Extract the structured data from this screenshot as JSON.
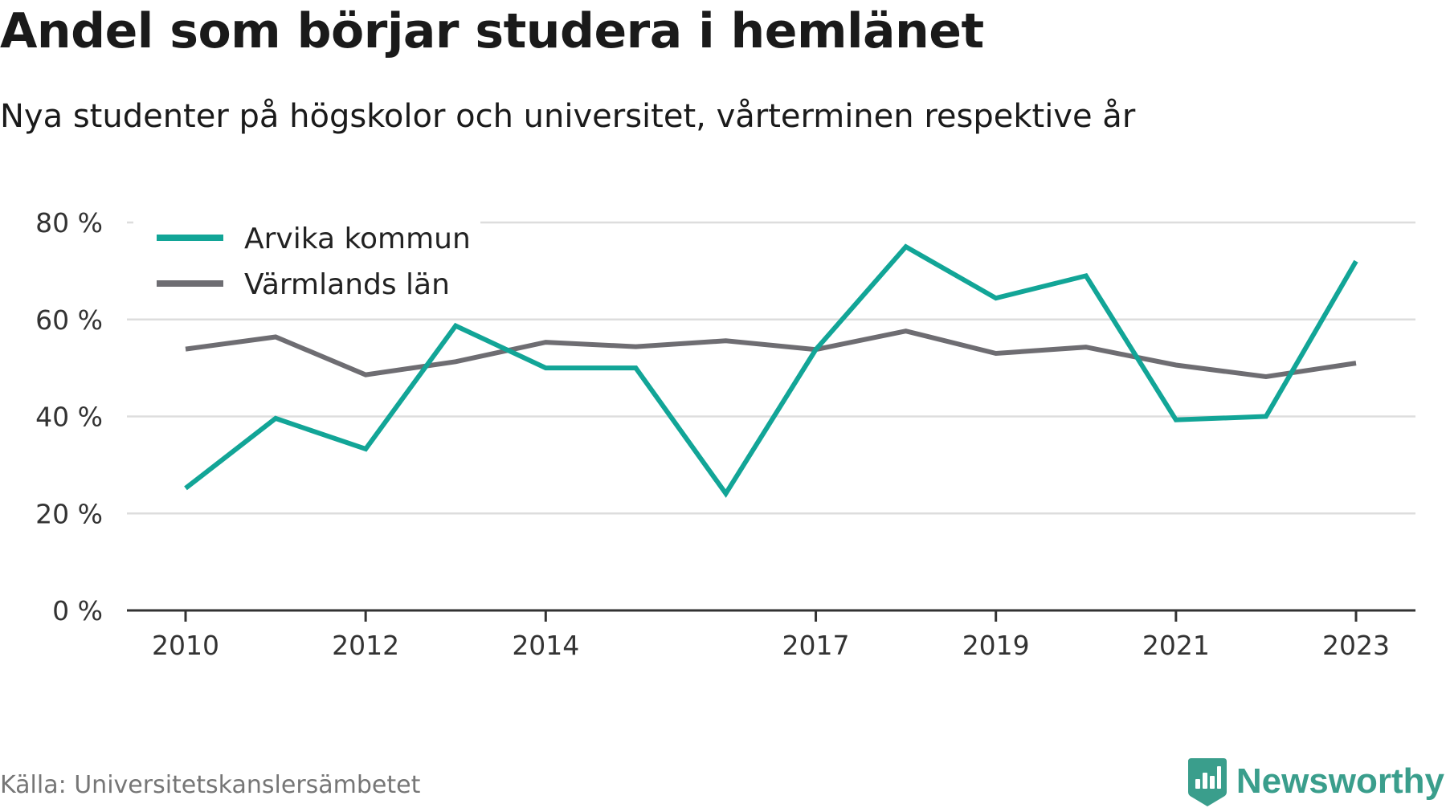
{
  "title": "Andel som börjar studera i hemlänet",
  "subtitle": "Nya studenter på högskolor och universitet, vårterminen respektive år",
  "source": "Källa: Universitetskanslersämbetet",
  "brand": "Newsworthy",
  "colors": {
    "arvika": "#12a597",
    "varmland": "#6e6d72",
    "grid": "#dddddd",
    "axis": "#333333",
    "brand": "#3a9e8c"
  },
  "chart_data": {
    "type": "line",
    "title": "Andel som börjar studera i hemlänet",
    "subtitle": "Nya studenter på högskolor och universitet, vårterminen respektive år",
    "xlabel": "",
    "ylabel": "",
    "x": [
      2010,
      2011,
      2012,
      2013,
      2014,
      2015,
      2016,
      2017,
      2018,
      2019,
      2020,
      2021,
      2022,
      2023
    ],
    "x_tick_values": [
      2010,
      2012,
      2014,
      2017,
      2019,
      2021,
      2023
    ],
    "x_tick_labels": [
      "2010",
      "2012",
      "2014",
      "2017",
      "2019",
      "2021",
      "2023"
    ],
    "y_tick_values": [
      0,
      20,
      40,
      60,
      80
    ],
    "y_tick_labels": [
      "0 %",
      "20 %",
      "40 %",
      "60 %",
      "80 %"
    ],
    "ylim": [
      0,
      80
    ],
    "grid": true,
    "legend_position": "top-left",
    "series": [
      {
        "name": "Arvika kommun",
        "color": "#12a597",
        "values": [
          25.2,
          39.6,
          33.3,
          58.7,
          50.0,
          50.0,
          24.1,
          53.8,
          75.0,
          64.4,
          69.0,
          39.3,
          40.0,
          72.0
        ]
      },
      {
        "name": "Värmlands län",
        "color": "#6e6d72",
        "values": [
          53.9,
          56.4,
          48.6,
          51.3,
          55.3,
          54.4,
          55.6,
          53.8,
          57.6,
          53.0,
          54.3,
          50.6,
          48.2,
          51.0
        ]
      }
    ]
  }
}
